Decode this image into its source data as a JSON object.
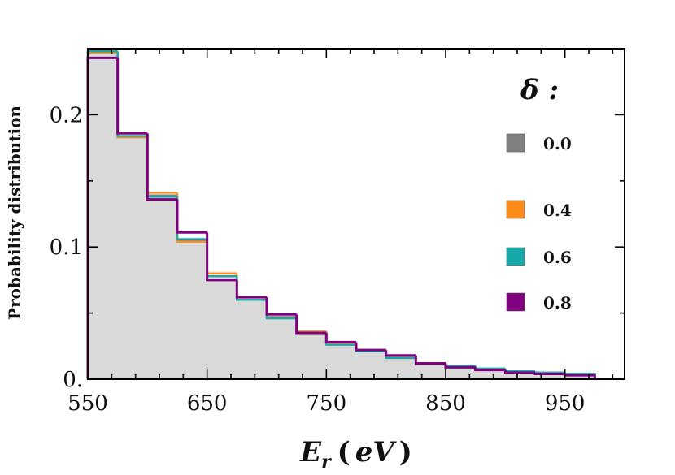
{
  "chart_data": {
    "type": "histogram",
    "xlabel_main": "E",
    "xlabel_sub": "r",
    "xlabel_unit_open": "(",
    "xlabel_unit": "eV",
    "xlabel_unit_close": ")",
    "ylabel": "Probability distribution",
    "xlim": [
      550,
      1000
    ],
    "ylim": [
      0,
      0.25
    ],
    "x_ticks": [
      550,
      650,
      750,
      850,
      950
    ],
    "x_tick_labels": [
      "550",
      "650",
      "750",
      "850",
      "950"
    ],
    "y_ticks": [
      0,
      0.1,
      0.2
    ],
    "y_tick_labels": [
      "0.",
      "0.1",
      "0.2"
    ],
    "bin_edges": [
      550,
      575,
      600,
      625,
      650,
      675,
      700,
      725,
      750,
      775,
      800,
      825,
      850,
      875,
      900,
      925,
      950,
      975
    ],
    "legend_title": "δ :",
    "legend_position": "right",
    "series": [
      {
        "name": "0.0",
        "color": "#808080",
        "fill": "#d9d9d9",
        "values": [
          0.247,
          0.183,
          0.139,
          0.105,
          0.078,
          0.06,
          0.047,
          0.036,
          0.027,
          0.021,
          0.017,
          0.012,
          0.01,
          0.008,
          0.006,
          0.005,
          0.004
        ]
      },
      {
        "name": "0.4",
        "color": "#ff8c1a",
        "values": [
          0.247,
          0.183,
          0.141,
          0.104,
          0.08,
          0.06,
          0.046,
          0.036,
          0.027,
          0.021,
          0.016,
          0.012,
          0.01,
          0.007,
          0.006,
          0.004,
          0.003
        ]
      },
      {
        "name": "0.6",
        "color": "#17a9a9",
        "values": [
          0.248,
          0.184,
          0.138,
          0.106,
          0.078,
          0.06,
          0.046,
          0.035,
          0.026,
          0.021,
          0.016,
          0.012,
          0.01,
          0.008,
          0.006,
          0.005,
          0.004
        ]
      },
      {
        "name": "0.8",
        "color": "#800080",
        "values": [
          0.243,
          0.186,
          0.136,
          0.111,
          0.075,
          0.062,
          0.049,
          0.035,
          0.028,
          0.022,
          0.018,
          0.012,
          0.009,
          0.007,
          0.005,
          0.004,
          0.003
        ]
      }
    ]
  }
}
